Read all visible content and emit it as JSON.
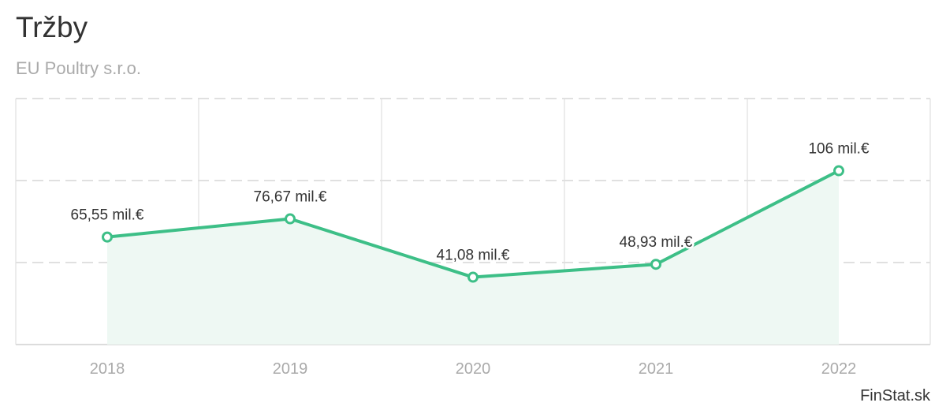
{
  "chart_data": {
    "type": "line",
    "title": "Tržby",
    "subtitle": "EU Poultry s.r.o.",
    "categories": [
      "2018",
      "2019",
      "2020",
      "2021",
      "2022"
    ],
    "values": [
      65.55,
      76.67,
      41.08,
      48.93,
      106
    ],
    "data_labels": [
      "65,55 mil.€",
      "76,67 mil.€",
      "41,08 mil.€",
      "48,93 mil.€",
      "106 mil.€"
    ],
    "unit": "mil.€",
    "ylim": [
      0,
      150
    ],
    "y_gridlines": [
      50,
      100,
      150
    ],
    "grid": true,
    "legend": "none",
    "color": "#3dbf87",
    "area_fill": "#eef8f3"
  },
  "credit": "FinStat.sk"
}
